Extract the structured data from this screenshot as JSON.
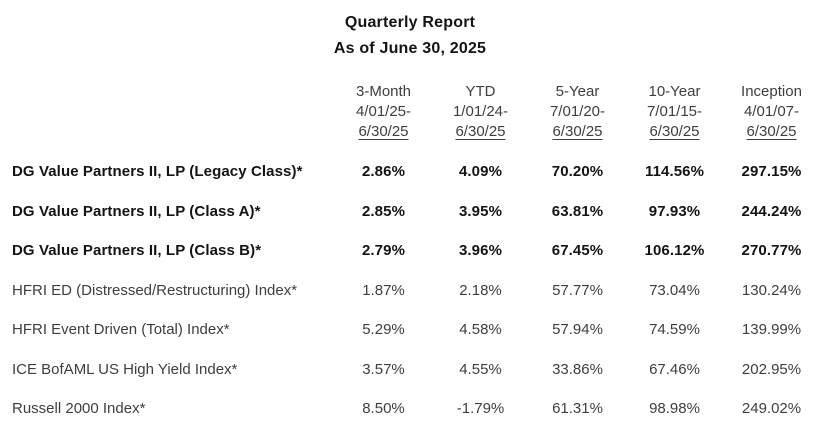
{
  "report": {
    "title": "Quarterly Report",
    "subtitle": "As of June 30, 2025"
  },
  "table": {
    "columns": [
      {
        "period": "3-Month",
        "range_start": "4/01/25-",
        "range_end": "6/30/25"
      },
      {
        "period": "YTD",
        "range_start": "1/01/24-",
        "range_end": "6/30/25"
      },
      {
        "period": "5-Year",
        "range_start": "7/01/20-",
        "range_end": "6/30/25"
      },
      {
        "period": "10-Year",
        "range_start": "7/01/15-",
        "range_end": "6/30/25"
      },
      {
        "period": "Inception",
        "range_start": "4/01/07-",
        "range_end": "6/30/25"
      }
    ],
    "rows": [
      {
        "name": "DG Value Partners II, LP (Legacy Class)*",
        "emphasis": true,
        "values": [
          "2.86%",
          "4.09%",
          "70.20%",
          "114.56%",
          "297.15%"
        ]
      },
      {
        "name": "DG Value Partners II, LP (Class A)*",
        "emphasis": true,
        "values": [
          "2.85%",
          "3.95%",
          "63.81%",
          "97.93%",
          "244.24%"
        ]
      },
      {
        "name": "DG Value Partners II, LP (Class B)*",
        "emphasis": true,
        "values": [
          "2.79%",
          "3.96%",
          "67.45%",
          "106.12%",
          "270.77%"
        ]
      },
      {
        "name": "HFRI ED (Distressed/Restructuring) Index*",
        "emphasis": false,
        "values": [
          "1.87%",
          "2.18%",
          "57.77%",
          "73.04%",
          "130.24%"
        ]
      },
      {
        "name": "HFRI Event Driven (Total) Index*",
        "emphasis": false,
        "values": [
          "5.29%",
          "4.58%",
          "57.94%",
          "74.59%",
          "139.99%"
        ]
      },
      {
        "name": "ICE BofAML US High Yield Index*",
        "emphasis": false,
        "values": [
          "3.57%",
          "4.55%",
          "33.86%",
          "67.46%",
          "202.95%"
        ]
      },
      {
        "name": "Russell 2000 Index*",
        "emphasis": false,
        "values": [
          "8.50%",
          "-1.79%",
          "61.31%",
          "98.98%",
          "249.02%"
        ]
      }
    ]
  },
  "colors": {
    "background": "#ffffff",
    "text_primary": "#141414",
    "text_secondary": "#3e3e3e"
  }
}
